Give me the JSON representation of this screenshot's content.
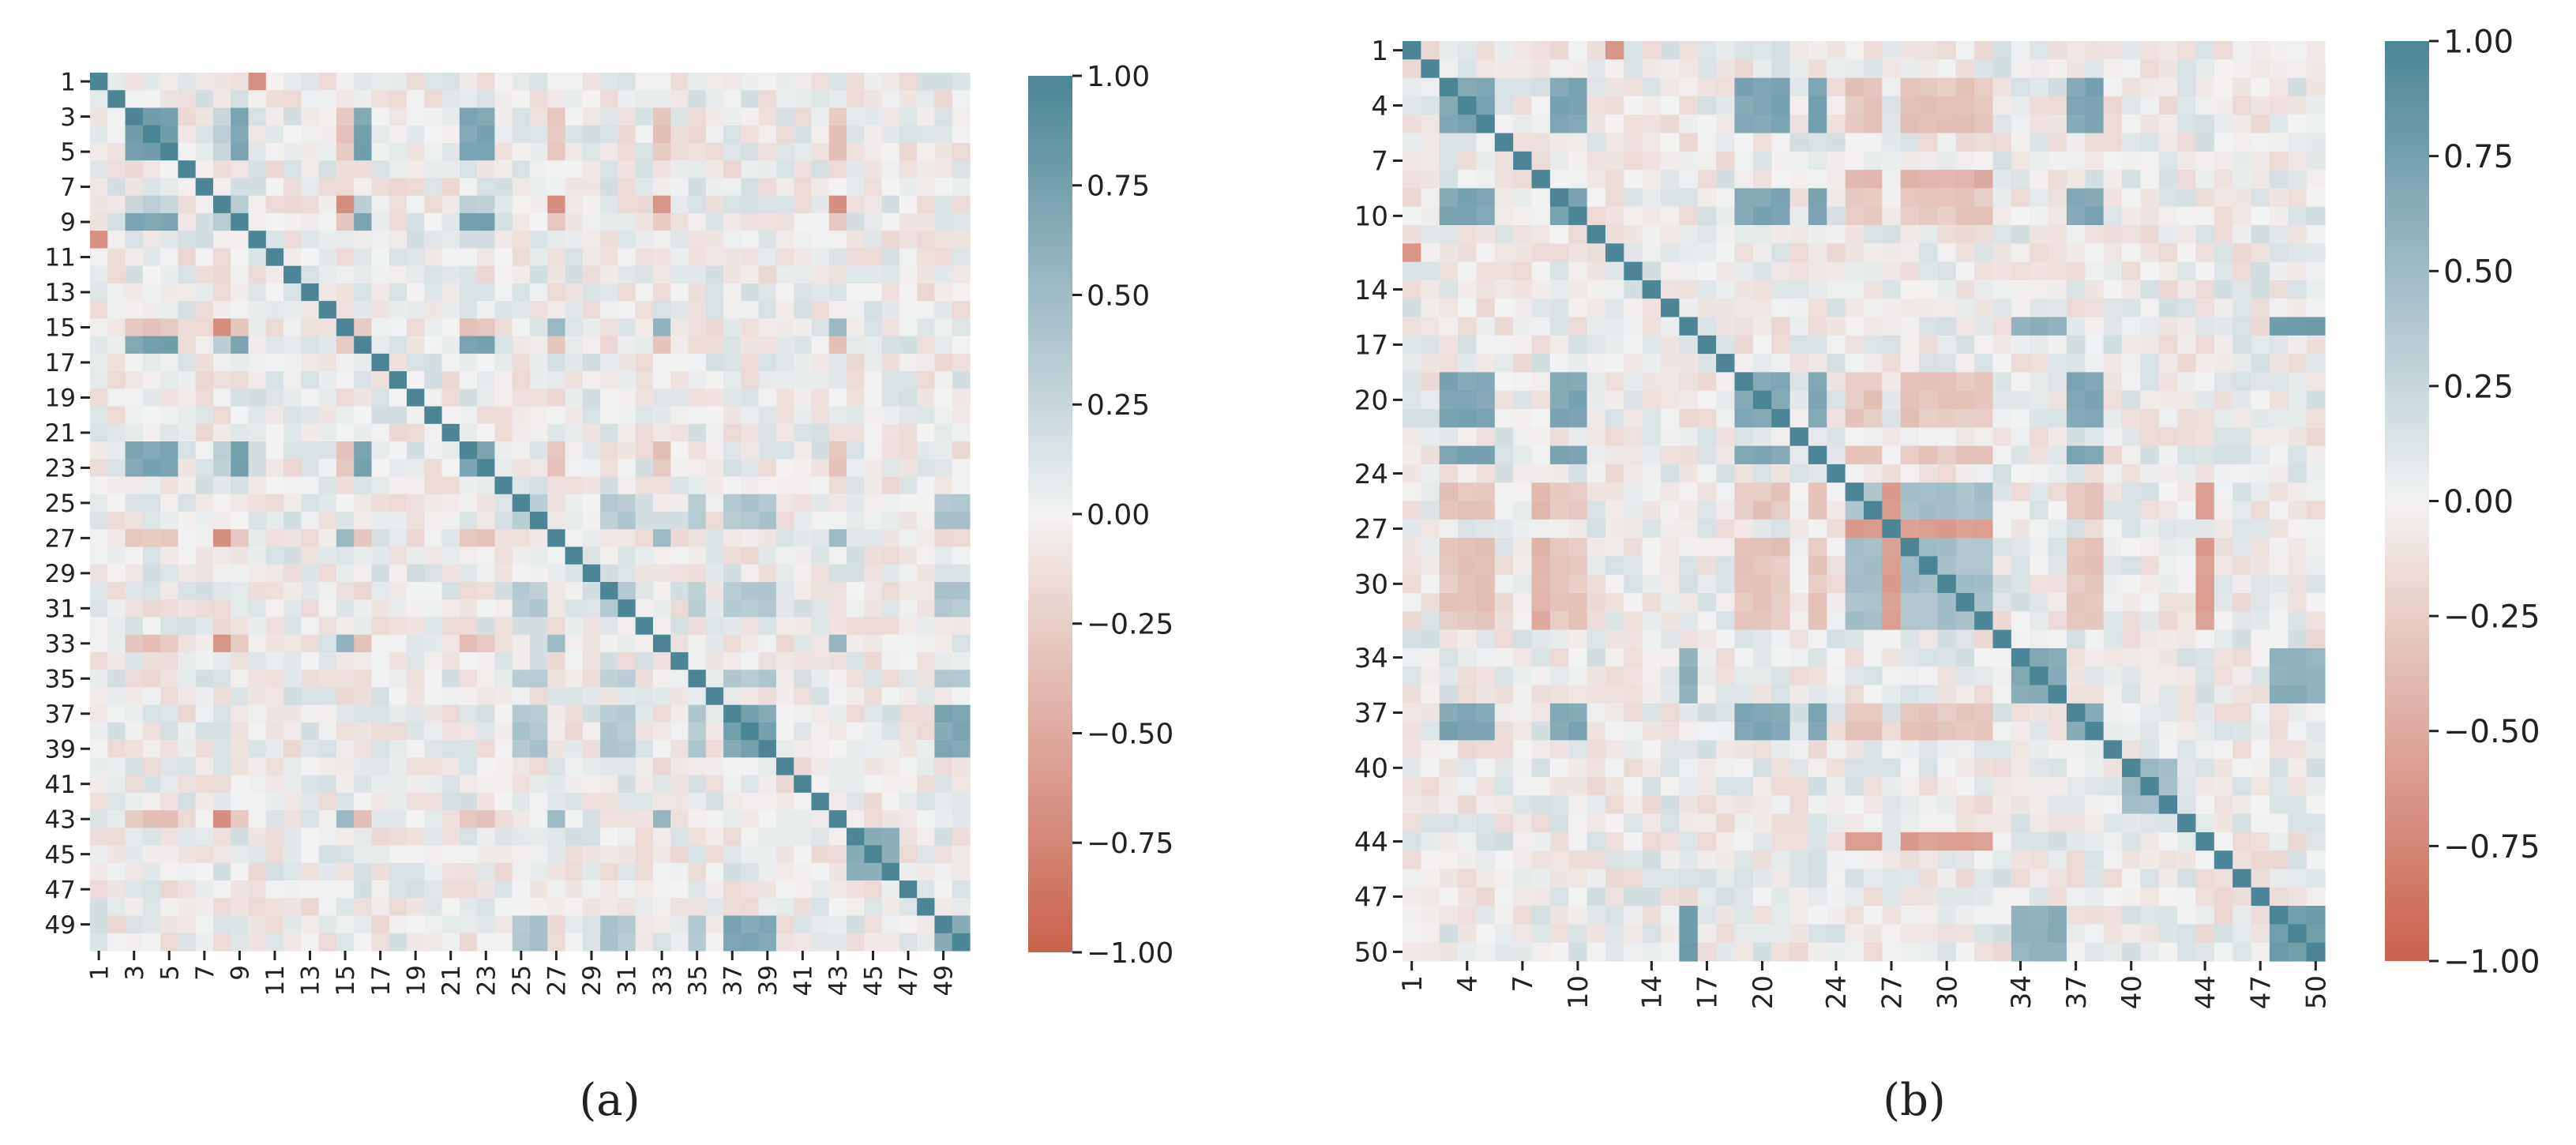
{
  "chart_data": [
    {
      "type": "heatmap",
      "panel_label": "(a)",
      "n": 50,
      "matrix_note_symmetric": true,
      "diagonal_value": 1.0,
      "xticks": [
        "1",
        "3",
        "5",
        "7",
        "9",
        "11",
        "13",
        "15",
        "17",
        "19",
        "21",
        "23",
        "25",
        "27",
        "29",
        "31",
        "33",
        "35",
        "37",
        "39",
        "41",
        "43",
        "45",
        "47",
        "49"
      ],
      "yticks": [
        "1",
        "3",
        "5",
        "7",
        "9",
        "11",
        "13",
        "15",
        "17",
        "19",
        "21",
        "23",
        "25",
        "27",
        "29",
        "31",
        "33",
        "35",
        "37",
        "39",
        "41",
        "43",
        "45",
        "47",
        "49"
      ],
      "colorbar": {
        "min": -1.0,
        "max": 1.0,
        "ticks": [
          1.0,
          0.75,
          0.5,
          0.25,
          0.0,
          -0.25,
          -0.5,
          -0.75,
          -1.0
        ],
        "tick_labels": [
          "1.00",
          "0.75",
          "0.50",
          "0.25",
          "0.00",
          "−0.25",
          "−0.50",
          "−0.75",
          "−1.00"
        ]
      },
      "colormap": {
        "negative": "#c9624c",
        "mid": "#f2f2f2",
        "positive": "#4b8596"
      },
      "groups": [
        {
          "indices": [
            3,
            4,
            5,
            9,
            16,
            22,
            23
          ],
          "value": 0.72
        },
        {
          "indices": [
            15,
            27,
            33,
            43
          ],
          "value": 0.55
        },
        {
          "indices": [
            37,
            38,
            39,
            49,
            50
          ],
          "value": 0.7
        },
        {
          "indices": [
            25,
            26,
            30,
            31,
            35
          ],
          "value": 0.35
        },
        {
          "indices": [
            44,
            45,
            46
          ],
          "value": 0.6
        }
      ],
      "cross": [
        {
          "a": [
            3,
            4,
            5,
            9,
            16,
            22,
            23
          ],
          "b": [
            15,
            27,
            33,
            43
          ],
          "value": -0.3
        },
        {
          "a": [
            8
          ],
          "b": [
            15,
            27,
            33,
            43
          ],
          "value": -0.65
        },
        {
          "a": [
            8
          ],
          "b": [
            3,
            4,
            5,
            9,
            16,
            22,
            23
          ],
          "value": 0.3
        },
        {
          "a": [
            1
          ],
          "b": [
            10
          ],
          "value": -0.7
        },
        {
          "a": [
            37,
            38,
            39,
            49,
            50
          ],
          "b": [
            25,
            26,
            30,
            31,
            35
          ],
          "value": 0.4
        }
      ]
    },
    {
      "type": "heatmap",
      "panel_label": "(b)",
      "n": 50,
      "matrix_note_symmetric": true,
      "diagonal_value": 1.0,
      "xticks": [
        "1",
        "4",
        "7",
        "10",
        "14",
        "17",
        "20",
        "24",
        "27",
        "30",
        "34",
        "37",
        "40",
        "44",
        "47",
        "50"
      ],
      "yticks": [
        "1",
        "4",
        "7",
        "10",
        "14",
        "17",
        "20",
        "24",
        "27",
        "30",
        "34",
        "37",
        "40",
        "44",
        "47",
        "50"
      ],
      "colorbar": {
        "min": -1.0,
        "max": 1.0,
        "ticks": [
          1.0,
          0.75,
          0.5,
          0.25,
          0.0,
          -0.25,
          -0.5,
          -0.75,
          -1.0
        ],
        "tick_labels": [
          "1.00",
          "0.75",
          "0.50",
          "0.25",
          "0.00",
          "−0.25",
          "−0.50",
          "−0.75",
          "−1.00"
        ]
      },
      "colormap": {
        "negative": "#c9624c",
        "mid": "#f2f2f2",
        "positive": "#4b8596"
      },
      "groups": [
        {
          "indices": [
            3,
            4,
            5,
            9,
            10,
            19,
            20,
            21,
            23,
            37,
            38
          ],
          "value": 0.7
        },
        {
          "indices": [
            25,
            26,
            28,
            29,
            30,
            31,
            32
          ],
          "value": 0.45
        },
        {
          "indices": [
            34,
            35,
            36
          ],
          "value": 0.65
        },
        {
          "indices": [
            48,
            49,
            50,
            16
          ],
          "value": 0.75
        },
        {
          "indices": [
            40,
            41,
            42
          ],
          "value": 0.5
        }
      ],
      "cross": [
        {
          "a": [
            3,
            4,
            5,
            9,
            10,
            19,
            20,
            21,
            23,
            37,
            38
          ],
          "b": [
            25,
            26,
            28,
            29,
            30,
            31,
            32
          ],
          "value": -0.3
        },
        {
          "a": [
            8
          ],
          "b": [
            25,
            26,
            28,
            29,
            30,
            31,
            32
          ],
          "value": -0.45
        },
        {
          "a": [
            27,
            44
          ],
          "b": [
            25,
            26,
            28,
            29,
            30,
            31,
            32
          ],
          "value": -0.6
        },
        {
          "a": [
            1
          ],
          "b": [
            12
          ],
          "value": -0.6
        },
        {
          "a": [
            34,
            35,
            36
          ],
          "b": [
            48,
            49,
            50,
            16
          ],
          "value": 0.6
        }
      ]
    }
  ]
}
